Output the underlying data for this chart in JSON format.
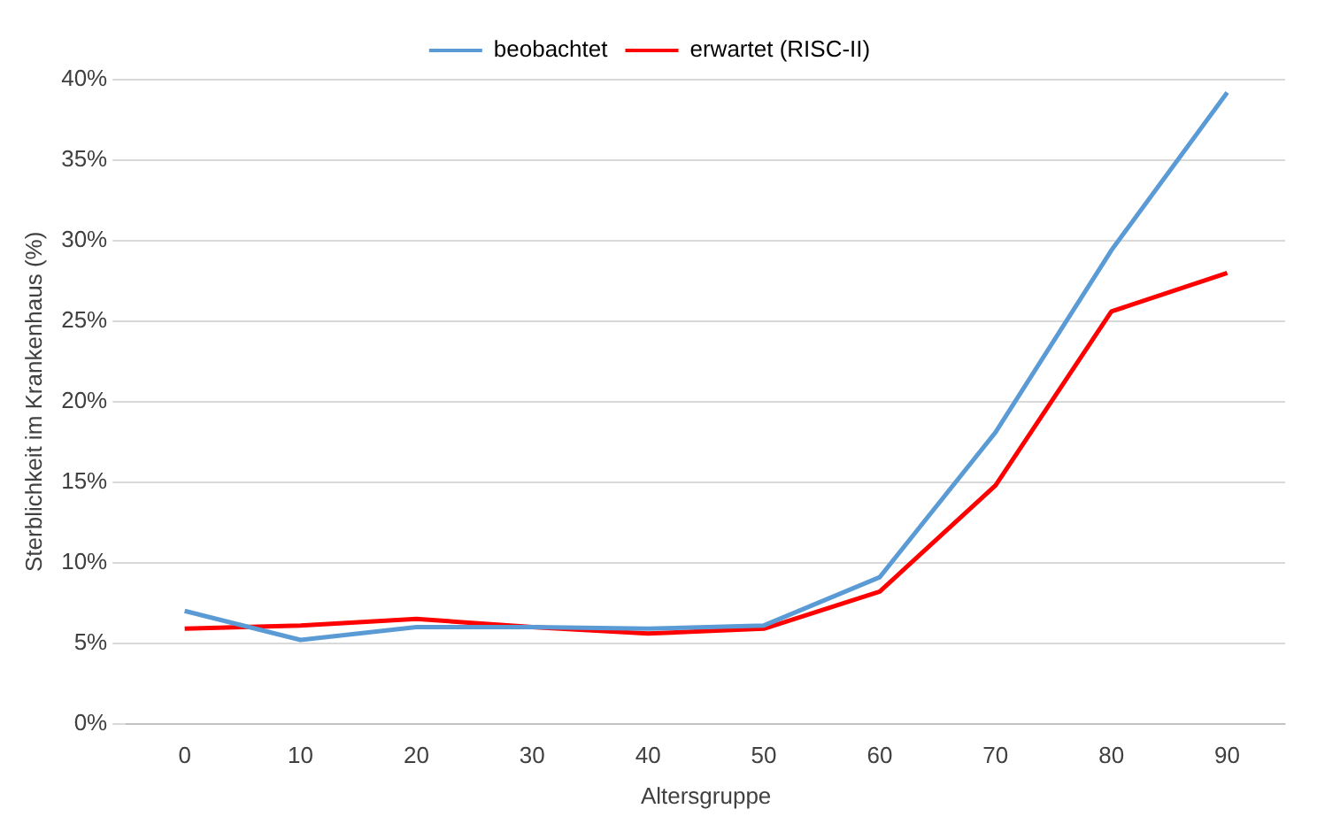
{
  "chart_data": {
    "type": "line",
    "xlabel": "Altersgruppe",
    "ylabel": "Sterblichkeit im Krankenhaus (%)",
    "categories": [
      "0",
      "10",
      "20",
      "30",
      "40",
      "50",
      "60",
      "70",
      "80",
      "90"
    ],
    "series": [
      {
        "name": "beobachtet",
        "color": "#5b9bd5",
        "values": [
          7.0,
          5.2,
          6.0,
          6.0,
          5.9,
          6.1,
          9.1,
          18.1,
          29.4,
          39.2
        ]
      },
      {
        "name": "erwartet (RISC-II)",
        "color": "#ff0000",
        "values": [
          5.9,
          6.1,
          6.5,
          6.0,
          5.6,
          5.9,
          8.2,
          14.8,
          25.6,
          28.0
        ]
      }
    ],
    "ylim": [
      0,
      40
    ],
    "yticks": [
      {
        "value": 0,
        "label": "0%"
      },
      {
        "value": 5,
        "label": "5%"
      },
      {
        "value": 10,
        "label": "10%"
      },
      {
        "value": 15,
        "label": "15%"
      },
      {
        "value": 20,
        "label": "20%"
      },
      {
        "value": 25,
        "label": "25%"
      },
      {
        "value": 30,
        "label": "30%"
      },
      {
        "value": 35,
        "label": "35%"
      },
      {
        "value": 40,
        "label": "40%"
      }
    ],
    "grid": "y",
    "legend": "top",
    "marker": "none",
    "line_style": "solid"
  }
}
